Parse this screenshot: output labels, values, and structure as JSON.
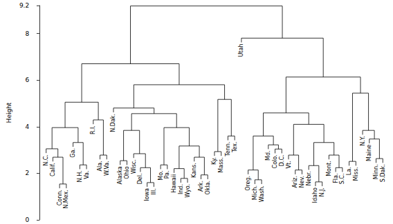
{
  "chart_data": {
    "type": "dendrogram",
    "ylabel": "Height",
    "ylim": [
      0,
      9.2
    ],
    "yticks": [
      0,
      2,
      4,
      6,
      8
    ],
    "tree": {
      "height": 9.18,
      "children": [
        {
          "height": 6.7,
          "children": [
            {
              "height": 5.05,
              "children": [
                {
                  "height": 3.96,
                  "children": [
                    {
                      "height": 3.05,
                      "children": [
                        "N.C.",
                        {
                          "height": 2.69,
                          "children": [
                            "Calif.",
                            {
                              "height": 1.54,
                              "children": [
                                "Conn.",
                                "N.Mex."
                              ]
                            }
                          ]
                        }
                      ]
                    },
                    {
                      "height": 3.32,
                      "children": [
                        "Ga.",
                        {
                          "height": 2.36,
                          "children": [
                            "N.H.",
                            "Va."
                          ]
                        }
                      ]
                    }
                  ]
                },
                {
                  "height": 4.29,
                  "children": [
                    "R.I.",
                    {
                      "height": 2.78,
                      "children": [
                        "Ala.",
                        "W.Va."
                      ]
                    }
                  ]
                }
              ]
            },
            {
              "height": 5.8,
              "children": [
                {
                  "height": 4.8,
                  "children": [
                    "N.Dak.",
                    {
                      "height": 4.56,
                      "children": [
                        {
                          "height": 3.84,
                          "children": [
                            {
                              "height": 2.54,
                              "children": [
                                "Alaska",
                                "Ohio"
                              ]
                            },
                            {
                              "height": 2.84,
                              "children": [
                                "Wisc.",
                                {
                                  "height": 2.24,
                                  "children": [
                                    "Del.",
                                    {
                                      "height": 1.6,
                                      "children": [
                                        "Iowa",
                                        "Ill."
                                      ]
                                    }
                                  ]
                                }
                              ]
                            }
                          ]
                        },
                        {
                          "height": 3.96,
                          "children": [
                            {
                              "height": 2.36,
                              "children": [
                                "Mo.",
                                "Pa."
                              ]
                            },
                            {
                              "height": 3.17,
                              "children": [
                                {
                                  "height": 2.2,
                                  "children": [
                                    "Hawaii",
                                    {
                                      "height": 1.78,
                                      "children": [
                                        "Ind.",
                                        "Wyo."
                                      ]
                                    }
                                  ]
                                },
                                {
                                  "height": 2.69,
                                  "children": [
                                    "Kans.",
                                    {
                                      "height": 1.93,
                                      "children": [
                                        "Ark.",
                                        "Okla."
                                      ]
                                    }
                                  ]
                                }
                              ]
                            }
                          ]
                        }
                      ]
                    }
                  ]
                },
                {
                  "height": 5.17,
                  "children": [
                    {
                      "height": 2.93,
                      "children": [
                        "Ky.",
                        "Mass."
                      ]
                    },
                    {
                      "height": 3.6,
                      "children": [
                        "Tenn.",
                        "Tex."
                      ]
                    }
                  ]
                }
              ]
            }
          ]
        },
        {
          "height": 7.8,
          "children": [
            "Utah",
            {
              "height": 6.13,
              "children": [
                {
                  "height": 4.59,
                  "children": [
                    {
                      "height": 3.6,
                      "children": [
                        {
                          "height": 2.14,
                          "children": [
                            "Oreg.",
                            {
                              "height": 1.72,
                              "children": [
                                "Mich.",
                                "Wash."
                              ]
                            }
                          ]
                        },
                        {
                          "height": 3.22,
                          "children": [
                            "Md.",
                            {
                              "height": 3.04,
                              "children": [
                                "Colo.",
                                "D.C."
                              ]
                            }
                          ]
                        }
                      ]
                    },
                    {
                      "height": 4.1,
                      "children": [
                        {
                          "height": 2.78,
                          "children": [
                            "Vt.",
                            {
                              "height": 2.14,
                              "children": [
                                "Ariz.",
                                "Nev."
                              ]
                            }
                          ]
                        },
                        {
                          "height": 3.32,
                          "children": [
                            {
                              "height": 2.33,
                              "children": [
                                "Nebr.",
                                {
                                  "height": 1.63,
                                  "children": [
                                    "Idaho",
                                    "N.J."
                                  ]
                                }
                              ]
                            },
                            {
                              "height": 2.78,
                              "children": [
                                "Mont.",
                                {
                                  "height": 2.24,
                                  "children": [
                                    "Fla.",
                                    "S.C."
                                  ]
                                }
                              ]
                            }
                          ]
                        }
                      ]
                    }
                  ]
                },
                {
                  "height": 5.44,
                  "children": [
                    {
                      "height": 2.51,
                      "children": [
                        "La.",
                        "Miss."
                      ]
                    },
                    {
                      "height": 3.84,
                      "children": [
                        "N.Y.",
                        {
                          "height": 3.47,
                          "children": [
                            "Maine",
                            {
                              "height": 2.63,
                              "children": [
                                "Minn.",
                                "S.Dak."
                              ]
                            }
                          ]
                        }
                      ]
                    }
                  ]
                }
              ]
            }
          ]
        }
      ]
    }
  }
}
